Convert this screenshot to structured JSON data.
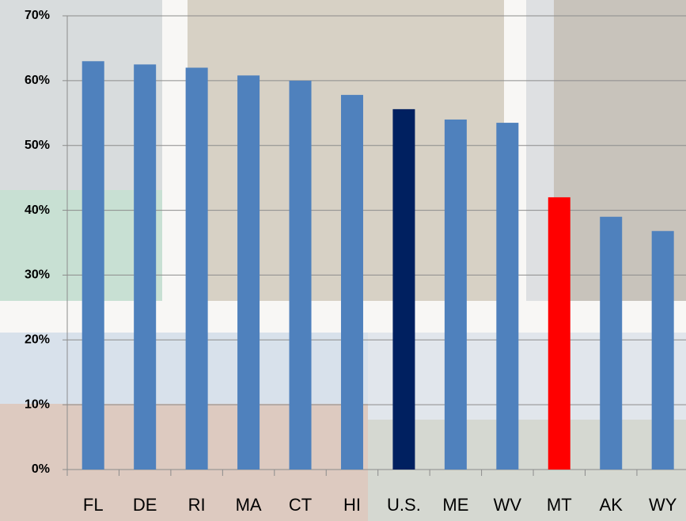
{
  "chart_data": {
    "type": "bar",
    "categories": [
      "FL",
      "DE",
      "RI",
      "MA",
      "CT",
      "HI",
      "U.S.",
      "ME",
      "WV",
      "MT",
      "AK",
      "WY"
    ],
    "values": [
      63,
      62.5,
      62,
      60.8,
      60,
      57.8,
      55.6,
      54,
      53.5,
      42,
      39,
      36.8
    ],
    "colors": [
      "#4f81bd",
      "#4f81bd",
      "#4f81bd",
      "#4f81bd",
      "#4f81bd",
      "#4f81bd",
      "#002060",
      "#4f81bd",
      "#4f81bd",
      "#ff0000",
      "#4f81bd",
      "#4f81bd"
    ],
    "ylim": [
      0,
      70
    ],
    "yticks": [
      {
        "value": 0,
        "label": "0%"
      },
      {
        "value": 10,
        "label": "10%"
      },
      {
        "value": 20,
        "label": "20%"
      },
      {
        "value": 30,
        "label": "30%"
      },
      {
        "value": 40,
        "label": "40%"
      },
      {
        "value": 50,
        "label": "50%"
      },
      {
        "value": 60,
        "label": "60%"
      },
      {
        "value": 70,
        "label": "70%"
      }
    ],
    "grid": true
  }
}
